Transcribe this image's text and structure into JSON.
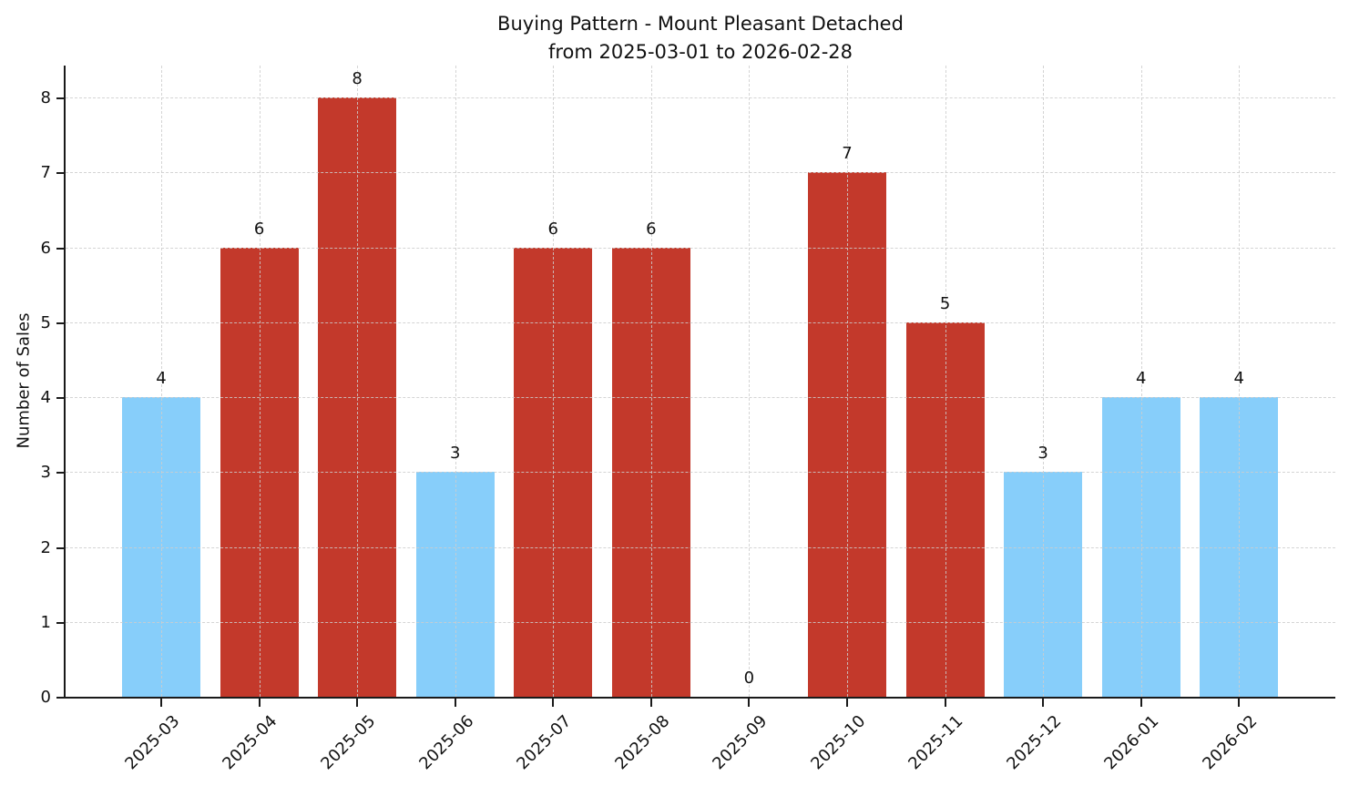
{
  "chart_data": {
    "type": "bar",
    "title": "Buying Pattern - Mount Pleasant Detached",
    "subtitle": "from 2025-03-01 to 2026-02-28",
    "ylabel": "Number of Sales",
    "xlabel": "",
    "categories": [
      "2025-03",
      "2025-04",
      "2025-05",
      "2025-06",
      "2025-07",
      "2025-08",
      "2025-09",
      "2025-10",
      "2025-11",
      "2025-12",
      "2026-01",
      "2026-02"
    ],
    "values": [
      4,
      6,
      8,
      3,
      6,
      6,
      0,
      7,
      5,
      3,
      4,
      4
    ],
    "bar_colors": [
      "#87CEFA",
      "#C3392B",
      "#C3392B",
      "#87CEFA",
      "#C3392B",
      "#C3392B",
      "#87CEFA",
      "#C3392B",
      "#C3392B",
      "#87CEFA",
      "#87CEFA",
      "#87CEFA"
    ],
    "value_labels": [
      "4",
      "6",
      "8",
      "3",
      "6",
      "6",
      "0",
      "7",
      "5",
      "3",
      "4",
      "4"
    ],
    "yticks": [
      0,
      1,
      2,
      3,
      4,
      5,
      6,
      7,
      8
    ],
    "ylim": [
      0,
      8.4
    ],
    "grid": true,
    "grid_style": "dashed",
    "legend": "none",
    "colors": {
      "low_bar": "#87CEFA",
      "high_bar": "#C3392B",
      "grid": "#cdcdcd",
      "axis": "#1a1a1a",
      "text": "#111111",
      "background": "#ffffff"
    }
  }
}
